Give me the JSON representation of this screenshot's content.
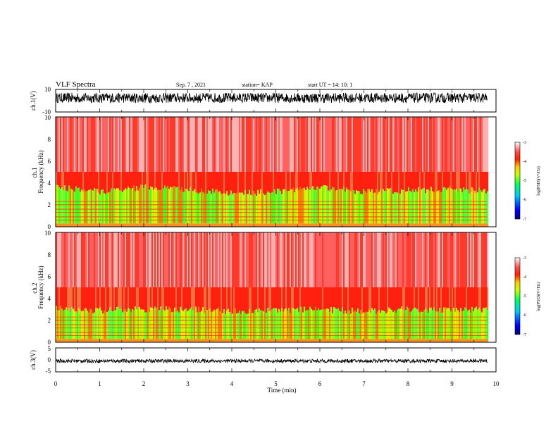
{
  "header": {
    "title": "VLF Spectra",
    "date": "Sep. 7  , 2021",
    "station": "station= KAP",
    "start": "start  UT =    14: 10: 1"
  },
  "colors": {
    "spectrum_low": "#000080",
    "spectrum_mid": "#00ff00",
    "spectrum_high": "#ff0000",
    "spectrum_top": "#ffffff",
    "trace": "#000000"
  },
  "chart_data": [
    {
      "type": "line",
      "name": "ch1-waveform",
      "ylabel": "ch.1(V)",
      "ylim": [
        -10,
        10
      ],
      "y_ticks": [
        "10",
        "-10"
      ],
      "xlim": [
        0,
        10
      ],
      "trace_level": [
        -2,
        7
      ]
    },
    {
      "type": "heatmap",
      "name": "ch1-spectrogram",
      "ylabel": "ch.1\nFrequency  (kHz)",
      "ylim": [
        0,
        10
      ],
      "y_ticks": [
        "0",
        "2",
        "4",
        "6",
        "8",
        "10"
      ],
      "xlim": [
        0,
        10
      ],
      "data_end_min": 9.8,
      "band_edges_khz": [
        {
          "t": 0,
          "top": 3.6
        },
        {
          "t": 1,
          "top": 3.2
        },
        {
          "t": 2,
          "top": 3.6
        },
        {
          "t": 3,
          "top": 3.4
        },
        {
          "t": 4,
          "top": 3.0
        },
        {
          "t": 5,
          "top": 3.2
        },
        {
          "t": 6,
          "top": 3.6
        },
        {
          "t": 7,
          "top": 3.2
        },
        {
          "t": 8,
          "top": 3.3
        },
        {
          "t": 9,
          "top": 3.4
        },
        {
          "t": 9.8,
          "top": 3.2
        }
      ],
      "colorbar": {
        "label": "log(PSD)(V²/Hz)",
        "range": [
          -7,
          -3
        ],
        "ticks": [
          "-3",
          "-4",
          "-5",
          "-6",
          "-7"
        ]
      }
    },
    {
      "type": "heatmap",
      "name": "ch2-spectrogram",
      "ylabel": "ch.2\nFrequency  (kHz)",
      "ylim": [
        0,
        10
      ],
      "y_ticks": [
        "0",
        "2",
        "4",
        "6",
        "8",
        "10"
      ],
      "xlim": [
        0,
        10
      ],
      "data_end_min": 9.8,
      "band_edges_khz": [
        {
          "t": 0,
          "top": 3.0
        },
        {
          "t": 1,
          "top": 2.9
        },
        {
          "t": 2,
          "top": 3.0
        },
        {
          "t": 3,
          "top": 3.0
        },
        {
          "t": 4,
          "top": 2.8
        },
        {
          "t": 5,
          "top": 2.9
        },
        {
          "t": 6,
          "top": 3.0
        },
        {
          "t": 7,
          "top": 2.8
        },
        {
          "t": 8,
          "top": 3.0
        },
        {
          "t": 9,
          "top": 2.9
        },
        {
          "t": 9.8,
          "top": 3.0
        }
      ],
      "colorbar": {
        "label": "log(PSD)(V²/Hz)",
        "range": [
          -7,
          -3
        ],
        "ticks": [
          "-3",
          "-4",
          "-5",
          "-6",
          "-7"
        ]
      }
    },
    {
      "type": "line",
      "name": "ch3-waveform",
      "ylabel": "ch.3(V)",
      "ylim": [
        -5,
        5
      ],
      "y_ticks": [
        "5",
        "0",
        "-5"
      ],
      "xlim": [
        0,
        10
      ],
      "xlabel": "Time  (min)",
      "x_ticks": [
        "0",
        "1",
        "2",
        "3",
        "4",
        "5",
        "6",
        "7",
        "8",
        "9",
        "10"
      ],
      "trace_level": [
        -1.2,
        0.3
      ]
    }
  ]
}
